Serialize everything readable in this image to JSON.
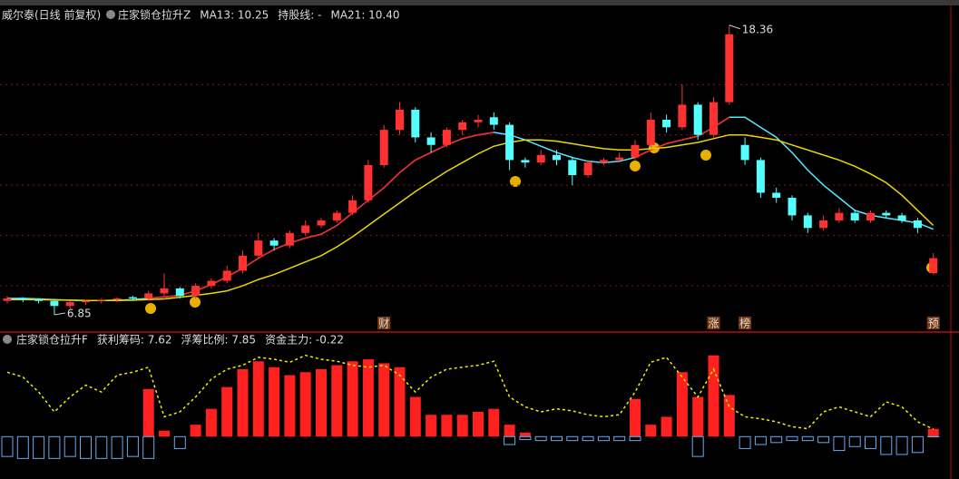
{
  "chart_data": [
    {
      "type": "candlestick",
      "title": "威尔泰(日线 前复权)",
      "subtitle": "庄家锁仓拉升Z",
      "up_color": "#ff3232",
      "down_color": "#54ffff",
      "ylim": [
        6.2,
        19.0
      ],
      "yticks": [
        8,
        10,
        12,
        14,
        16
      ],
      "grid": true,
      "open": [
        7.4,
        7.5,
        7.45,
        7.4,
        7.2,
        7.35,
        7.4,
        7.45,
        7.55,
        7.5,
        7.7,
        7.9,
        7.6,
        8.0,
        8.2,
        8.6,
        9.2,
        9.8,
        9.6,
        10.1,
        10.4,
        10.6,
        10.9,
        11.4,
        12.8,
        14.2,
        15.0,
        13.9,
        13.6,
        14.2,
        14.5,
        14.7,
        14.4,
        13.0,
        12.9,
        13.2,
        13.0,
        12.4,
        12.9,
        13.0,
        13.1,
        13.6,
        14.6,
        14.3,
        15.2,
        14.0,
        15.3,
        13.6,
        13.0,
        11.7,
        11.5,
        10.8,
        10.3,
        10.6,
        10.9,
        10.6,
        10.9,
        10.8,
        10.6,
        8.5
      ],
      "close": [
        7.5,
        7.45,
        7.4,
        7.2,
        7.35,
        7.4,
        7.45,
        7.5,
        7.5,
        7.7,
        7.9,
        7.6,
        8.0,
        8.2,
        8.6,
        9.2,
        9.8,
        9.6,
        10.1,
        10.4,
        10.6,
        10.9,
        11.4,
        12.8,
        14.2,
        15.0,
        13.9,
        13.6,
        14.2,
        14.5,
        14.6,
        14.4,
        13.0,
        12.9,
        13.2,
        13.0,
        12.4,
        12.9,
        13.0,
        13.1,
        13.6,
        14.6,
        14.3,
        15.2,
        14.0,
        15.3,
        18.0,
        13.0,
        11.7,
        11.5,
        10.8,
        10.3,
        10.6,
        10.9,
        10.6,
        10.9,
        10.8,
        10.6,
        10.3,
        9.1
      ],
      "high": [
        7.6,
        7.55,
        7.5,
        7.45,
        7.4,
        7.45,
        7.5,
        7.55,
        7.6,
        7.8,
        8.5,
        7.95,
        8.1,
        8.3,
        8.8,
        9.4,
        10.1,
        9.9,
        10.2,
        10.6,
        10.7,
        11.0,
        11.6,
        13.0,
        14.4,
        15.3,
        15.1,
        14.1,
        14.3,
        14.6,
        14.8,
        14.9,
        14.5,
        13.1,
        13.4,
        13.4,
        13.1,
        13.0,
        13.1,
        13.3,
        13.8,
        14.9,
        14.8,
        16.0,
        15.3,
        15.5,
        18.36,
        13.9,
        13.1,
        11.9,
        11.6,
        10.9,
        10.8,
        11.1,
        11.0,
        11.0,
        11.0,
        10.9,
        10.7,
        9.3
      ],
      "low": [
        7.3,
        7.35,
        7.3,
        6.85,
        7.1,
        7.25,
        7.3,
        7.35,
        7.4,
        7.4,
        7.6,
        7.5,
        7.5,
        7.9,
        8.1,
        8.5,
        9.1,
        9.4,
        9.5,
        10.0,
        10.3,
        10.5,
        10.8,
        11.3,
        12.7,
        14.0,
        13.7,
        13.3,
        13.5,
        14.0,
        14.3,
        14.2,
        12.6,
        12.7,
        12.8,
        12.8,
        12.0,
        12.3,
        12.8,
        12.9,
        13.0,
        13.5,
        14.1,
        14.2,
        13.8,
        13.9,
        15.2,
        12.8,
        11.5,
        11.3,
        10.6,
        10.1,
        10.2,
        10.5,
        10.5,
        10.5,
        10.7,
        10.5,
        10.1,
        8.45
      ],
      "series": [
        {
          "name": "MA13: 10.25",
          "color": "#54e8ff",
          "values": [
            7.5,
            7.5,
            7.48,
            7.45,
            7.43,
            7.42,
            7.42,
            7.43,
            7.45,
            7.5,
            7.56,
            7.62,
            7.8,
            8.05,
            8.36,
            8.7,
            9.1,
            9.45,
            9.7,
            9.9,
            10.05,
            10.4,
            10.9,
            11.4,
            11.9,
            12.5,
            13.0,
            13.3,
            13.6,
            13.85,
            14.0,
            14.1,
            14.0,
            13.8,
            13.55,
            13.3,
            13.1,
            12.95,
            12.9,
            12.95,
            13.1,
            13.4,
            13.65,
            13.8,
            13.95,
            14.3,
            14.7,
            14.7,
            14.3,
            13.9,
            13.3,
            12.6,
            12.0,
            11.5,
            11.0,
            10.8,
            10.7,
            10.6,
            10.5,
            10.25
          ]
        },
        {
          "name": "持股线: -",
          "color": "#ff2020",
          "values": [
            null,
            null,
            null,
            null,
            null,
            null,
            null,
            null,
            null,
            7.5,
            7.56,
            7.62,
            7.8,
            8.05,
            8.36,
            8.7,
            9.1,
            9.45,
            9.7,
            9.9,
            10.05,
            10.4,
            10.9,
            11.4,
            11.9,
            12.5,
            13.0,
            13.3,
            13.6,
            13.85,
            14.0,
            14.1,
            null,
            null,
            null,
            null,
            null,
            null,
            null,
            null,
            13.1,
            13.4,
            13.65,
            13.8,
            13.95,
            14.3,
            14.7,
            null,
            null,
            null,
            null,
            null,
            null,
            null,
            null,
            null,
            null,
            null,
            null,
            null
          ]
        },
        {
          "name": "MA21: 10.40",
          "color": "#e8d800",
          "values": [
            7.45,
            7.45,
            7.45,
            7.44,
            7.43,
            7.42,
            7.42,
            7.42,
            7.43,
            7.45,
            7.48,
            7.55,
            7.62,
            7.7,
            7.8,
            8.0,
            8.25,
            8.45,
            8.7,
            8.95,
            9.2,
            9.55,
            9.95,
            10.4,
            10.85,
            11.3,
            11.75,
            12.15,
            12.55,
            12.9,
            13.25,
            13.55,
            13.7,
            13.8,
            13.8,
            13.75,
            13.65,
            13.55,
            13.45,
            13.4,
            13.4,
            13.45,
            13.5,
            13.6,
            13.7,
            13.85,
            14.0,
            14.0,
            13.9,
            13.8,
            13.6,
            13.4,
            13.2,
            13.0,
            12.75,
            12.45,
            12.1,
            11.6,
            11.0,
            10.4
          ]
        }
      ],
      "events": [
        null,
        null,
        null,
        null,
        null,
        null,
        null,
        null,
        null,
        null,
        null,
        null,
        null,
        null,
        null,
        null,
        null,
        null,
        null,
        null,
        null,
        null,
        null,
        null,
        "财",
        null,
        null,
        null,
        null,
        null,
        null,
        null,
        null,
        null,
        null,
        null,
        null,
        null,
        null,
        null,
        null,
        null,
        null,
        null,
        null,
        "涨",
        null,
        "榜",
        null,
        null,
        null,
        null,
        null,
        null,
        null,
        null,
        null,
        null,
        null,
        "预"
      ]
    },
    {
      "type": "indicator",
      "title": "庄家锁仓拉升F",
      "ylim": [
        -40,
        100
      ],
      "series": [
        {
          "name": "获利筹码: 7.62",
          "color": "#f0f000",
          "style": "dashed",
          "values": [
            65,
            60,
            45,
            25,
            40,
            52,
            45,
            62,
            65,
            70,
            20,
            25,
            40,
            58,
            68,
            72,
            80,
            78,
            75,
            82,
            78,
            76,
            72,
            70,
            72,
            62,
            45,
            60,
            68,
            70,
            72,
            76,
            40,
            30,
            25,
            28,
            26,
            22,
            20,
            22,
            45,
            75,
            80,
            60,
            40,
            68,
            30,
            20,
            18,
            15,
            10,
            8,
            25,
            30,
            25,
            20,
            35,
            30,
            15,
            7.62
          ]
        },
        {
          "name": "浮筹比例: 7.85",
          "color": "#ff2020",
          "style": "bar",
          "values": [
            0,
            0,
            0,
            0,
            0,
            0,
            0,
            0,
            0,
            48,
            6,
            0,
            12,
            28,
            50,
            68,
            76,
            70,
            62,
            65,
            68,
            72,
            76,
            78,
            74,
            70,
            40,
            22,
            22,
            22,
            25,
            28,
            12,
            4,
            0,
            0,
            0,
            0,
            0,
            0,
            38,
            12,
            20,
            65,
            40,
            82,
            42,
            0,
            0,
            0,
            0,
            0,
            0,
            0,
            0,
            0,
            0,
            0,
            0,
            7.85
          ]
        },
        {
          "name": "资金主力: -0.22",
          "color": "#6aaaf0",
          "style": "bar",
          "values": [
            -20,
            -22,
            -22,
            -22,
            -20,
            -22,
            -22,
            -22,
            -20,
            -22,
            0,
            -12,
            0,
            0,
            0,
            0,
            0,
            0,
            0,
            0,
            0,
            0,
            0,
            0,
            0,
            0,
            0,
            0,
            0,
            0,
            0,
            0,
            -8,
            -3,
            -4,
            -4,
            -4,
            -4,
            -4,
            -4,
            -4,
            0,
            0,
            0,
            -20,
            0,
            0,
            -12,
            -8,
            -6,
            -4,
            -4,
            -6,
            -14,
            -10,
            -12,
            -18,
            -18,
            -16,
            -0.22
          ]
        }
      ]
    }
  ]
}
